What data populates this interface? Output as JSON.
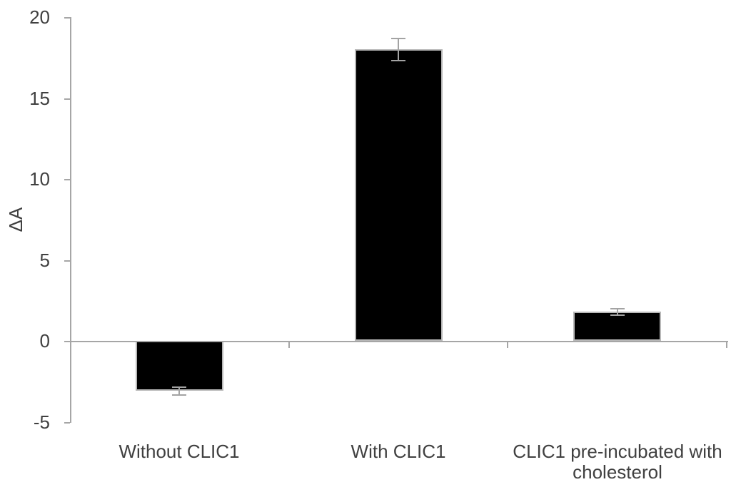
{
  "chart_data": {
    "type": "bar",
    "title": "",
    "ylabel": "ΔA",
    "xlabel": "",
    "categories": [
      "Without CLIC1",
      "With CLIC1",
      "CLIC1 pre-incubated with cholesterol"
    ],
    "series": [
      {
        "name": "ΔA",
        "values": [
          -3.1,
          18,
          1.8
        ],
        "errors": [
          0.25,
          0.7,
          0.2
        ]
      }
    ],
    "values": [
      -3.1,
      18,
      1.8
    ],
    "errors": [
      0.25,
      0.7,
      0.2
    ],
    "yticks": [
      -5,
      0,
      5,
      10,
      15,
      20
    ],
    "ylim": [
      -5,
      20
    ],
    "grid": false,
    "legend": null,
    "colors": {
      "bar_fill": "#000000",
      "bar_border": "#b8b8b8",
      "error_bar": "#a3a3a3",
      "axis": "#a6a6a6",
      "text": "#404040",
      "background": "#ffffff"
    }
  }
}
